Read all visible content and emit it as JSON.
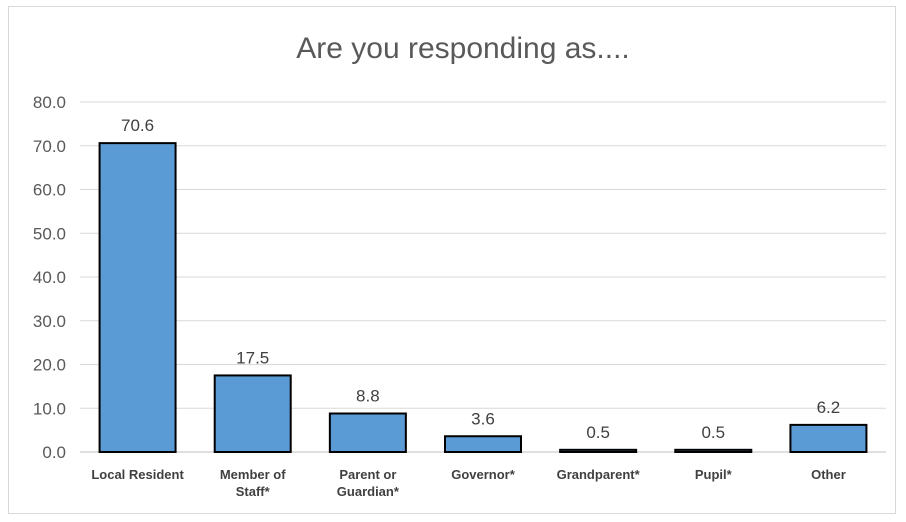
{
  "chart_data": {
    "type": "bar",
    "title": "Are you responding as....",
    "categories": [
      [
        "Local Resident"
      ],
      [
        "Member of",
        "Staff*"
      ],
      [
        "Parent or",
        "Guardian*"
      ],
      [
        "Governor*"
      ],
      [
        "Grandparent*"
      ],
      [
        "Pupil*"
      ],
      [
        "Other"
      ]
    ],
    "values": [
      70.6,
      17.5,
      8.8,
      3.6,
      0.5,
      0.5,
      6.2
    ],
    "data_labels": [
      "70.6",
      "17.5",
      "8.8",
      "3.6",
      "0.5",
      "0.5",
      "6.2"
    ],
    "ylim": [
      0,
      80
    ],
    "yticks": [
      "0.0",
      "10.0",
      "20.0",
      "30.0",
      "40.0",
      "50.0",
      "60.0",
      "70.0",
      "80.0"
    ],
    "grid": true,
    "legend": "none",
    "bar_color": "#5b9bd5",
    "bar_outline_color": "#000000"
  }
}
